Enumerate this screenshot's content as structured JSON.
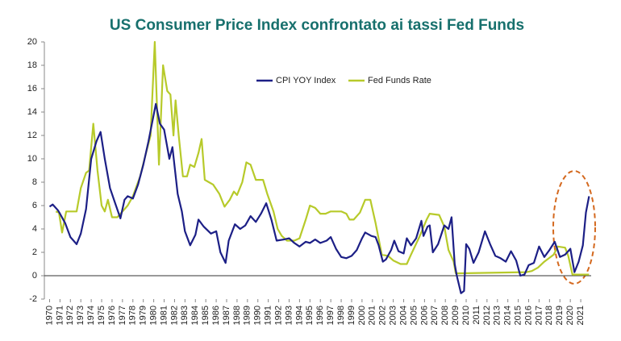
{
  "chart_data": {
    "type": "line",
    "title": "US Consumer Price Index confrontato ai tassi Fed Funds",
    "series": [
      {
        "name": "CPI YOY Index",
        "color": "#1c1f86",
        "x": [
          1970,
          1970.3,
          1970.8,
          1971,
          1971.5,
          1972,
          1972.6,
          1973,
          1973.5,
          1974,
          1974.5,
          1974.9,
          1975.3,
          1975.8,
          1976.3,
          1976.8,
          1977.2,
          1977.5,
          1978,
          1978.5,
          1979,
          1979.5,
          1980.2,
          1980.6,
          1981,
          1981.5,
          1981.8,
          1982.3,
          1982.7,
          1983,
          1983.5,
          1984,
          1984.3,
          1984.8,
          1985.5,
          1986,
          1986.4,
          1986.9,
          1987.2,
          1987.8,
          1988.3,
          1988.8,
          1989.3,
          1989.8,
          1990.3,
          1990.8,
          1991.3,
          1991.8,
          1992.5,
          1993,
          1993.5,
          1994,
          1994.6,
          1995,
          1995.5,
          1996,
          1996.6,
          1997,
          1997.5,
          1998,
          1998.5,
          1999,
          1999.5,
          2000,
          2000.3,
          2000.9,
          2001.3,
          2001.6,
          2002,
          2002.3,
          2002.8,
          2003.1,
          2003.5,
          2004,
          2004.3,
          2004.7,
          2005.2,
          2005.7,
          2005.9,
          2006.3,
          2006.5,
          2006.8,
          2007.3,
          2007.9,
          2008.3,
          2008.6,
          2008.9,
          2009.1,
          2009.5,
          2009.8,
          2010,
          2010.3,
          2010.7,
          2011.2,
          2011.8,
          2012.3,
          2012.8,
          2013.3,
          2013.8,
          2014.3,
          2014.8,
          2015.2,
          2015.6,
          2016,
          2016.5,
          2017,
          2017.5,
          2018,
          2018.5,
          2019,
          2019.5,
          2020,
          2020.4,
          2020.8,
          2021.2,
          2021.5,
          2021.8
        ],
        "values": [
          5.9,
          6.1,
          5.6,
          5.3,
          4.5,
          3.3,
          2.7,
          3.6,
          5.7,
          10,
          11.5,
          12.3,
          10,
          7.5,
          6.2,
          4.9,
          6.5,
          6.8,
          6.6,
          7.8,
          9.5,
          11.5,
          14.7,
          13,
          12.5,
          10,
          11,
          7,
          5.5,
          3.8,
          2.6,
          3.5,
          4.8,
          4.2,
          3.6,
          3.8,
          2,
          1.1,
          3,
          4.4,
          4,
          4.3,
          5.1,
          4.6,
          5.3,
          6.2,
          4.8,
          3,
          3.1,
          3.2,
          2.8,
          2.5,
          2.9,
          2.8,
          3.1,
          2.8,
          3,
          3.3,
          2.3,
          1.6,
          1.5,
          1.7,
          2.2,
          3.2,
          3.7,
          3.4,
          3.3,
          2.6,
          1.2,
          1.4,
          2.2,
          3,
          2.1,
          1.9,
          3.2,
          2.6,
          3.2,
          4.7,
          3.4,
          4.2,
          4.3,
          2,
          2.7,
          4.3,
          4,
          5,
          1,
          0,
          -1.5,
          -1.3,
          2.7,
          2.3,
          1.1,
          2,
          3.8,
          2.7,
          1.7,
          1.5,
          1.2,
          2.1,
          1.3,
          0,
          0.1,
          0.9,
          1.1,
          2.5,
          1.6,
          2.2,
          2.9,
          1.6,
          1.8,
          2.3,
          0.3,
          1.2,
          2.6,
          5.4,
          6.8
        ]
      },
      {
        "name": "Fed Funds Rate",
        "color": "#b7ca2a",
        "x": [
          1970.6,
          1970.9,
          1971.2,
          1971.6,
          1972.2,
          1972.6,
          1973,
          1973.5,
          1973.8,
          1974.2,
          1974.6,
          1975,
          1975.3,
          1975.6,
          1976,
          1976.5,
          1977,
          1977.5,
          1978,
          1978.7,
          1979.2,
          1979.7,
          1980.1,
          1980.5,
          1980.9,
          1981.3,
          1981.6,
          1981.9,
          1982.1,
          1982.4,
          1982.8,
          1983.2,
          1983.5,
          1983.9,
          1984.3,
          1984.6,
          1984.9,
          1985.3,
          1985.7,
          1986.3,
          1986.8,
          1987.3,
          1987.7,
          1988,
          1988.5,
          1988.9,
          1989.3,
          1989.8,
          1990.5,
          1990.9,
          1991.5,
          1991.9,
          1992.3,
          1992.8,
          1993.5,
          1994,
          1994.6,
          1995,
          1995.5,
          1996,
          1996.5,
          1997,
          1998,
          1998.5,
          1998.8,
          1999.2,
          1999.8,
          2000.3,
          2000.8,
          2001.3,
          2001.9,
          2002.5,
          2003,
          2003.7,
          2004.3,
          2004.7,
          2005.5,
          2006.2,
          2006.5,
          2007.4,
          2007.9,
          2008.3,
          2008.8,
          2009,
          2015.8,
          2016.3,
          2016.9,
          2017.5,
          2018.4,
          2018.8,
          2019.5,
          2019.8,
          2020.2,
          2021.8
        ],
        "values": [
          5.5,
          5.4,
          3.7,
          5.5,
          5.5,
          5.5,
          7.5,
          8.8,
          9,
          13,
          9,
          6,
          5.5,
          6.5,
          5,
          5,
          5.5,
          6,
          6.8,
          8.5,
          10.3,
          12,
          20,
          9.5,
          18,
          15.8,
          15.5,
          12,
          15,
          12,
          8.5,
          8.5,
          9.5,
          9.3,
          10.5,
          11.7,
          8.2,
          8,
          7.8,
          7,
          5.9,
          6.5,
          7.2,
          6.9,
          8,
          9.7,
          9.5,
          8.2,
          8.2,
          7,
          5.5,
          4,
          3.4,
          3,
          3,
          3.2,
          4.8,
          6,
          5.8,
          5.3,
          5.3,
          5.5,
          5.5,
          5.3,
          4.8,
          4.8,
          5.4,
          6.5,
          6.5,
          4.5,
          1.8,
          1.7,
          1.3,
          1,
          1,
          1.8,
          3.3,
          4.8,
          5.3,
          5.2,
          4.2,
          2.2,
          1.2,
          0.2,
          0.3,
          0.4,
          0.7,
          1.2,
          1.8,
          2.5,
          2.4,
          1.7,
          0.1,
          0.1
        ]
      }
    ],
    "xlim": [
      1969.5,
      2022
    ],
    "xticks": [
      1970,
      1971,
      1972,
      1973,
      1974,
      1975,
      1976,
      1977,
      1978,
      1979,
      1980,
      1981,
      1982,
      1983,
      1984,
      1985,
      1986,
      1987,
      1988,
      1989,
      1990,
      1991,
      1992,
      1993,
      1994,
      1995,
      1996,
      1997,
      1998,
      1999,
      2000,
      2001,
      2002,
      2003,
      2004,
      2005,
      2006,
      2007,
      2008,
      2009,
      2010,
      2011,
      2012,
      2013,
      2014,
      2015,
      2016,
      2017,
      2018,
      2019,
      2020,
      2021
    ],
    "ylim": [
      -2,
      20
    ],
    "yticks": [
      -2,
      0,
      2,
      4,
      6,
      8,
      10,
      12,
      14,
      16,
      18,
      20
    ]
  }
}
